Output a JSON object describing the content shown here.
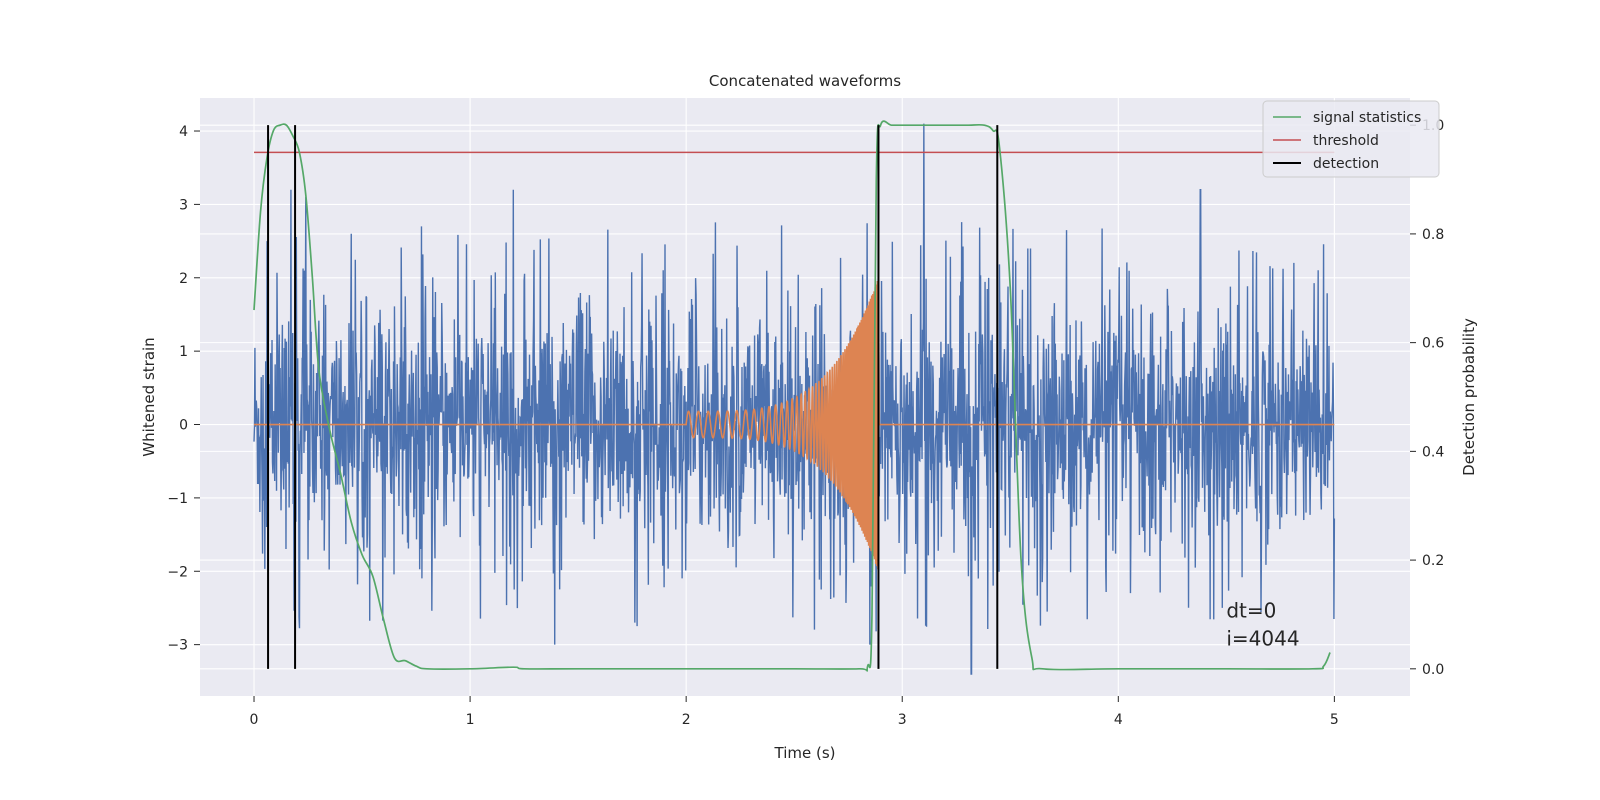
{
  "chart_data": {
    "type": "line",
    "title": "Concatenated waveforms",
    "xlabel": "Time (s)",
    "ylabel": "Whitened strain",
    "y2label": "Detection probability",
    "xlim": [
      -0.25,
      5.35
    ],
    "ylim": [
      -3.7,
      4.45
    ],
    "y2lim": [
      -0.05,
      1.05
    ],
    "xticks": [
      0,
      1,
      2,
      3,
      4,
      5
    ],
    "yticks": [
      -3,
      -2,
      -1,
      0,
      1,
      2,
      3,
      4
    ],
    "y2ticks": [
      "0.0",
      "0.2",
      "0.4",
      "0.6",
      "0.8",
      "1.0"
    ],
    "grid": true,
    "legend_position": "top-right",
    "colors": {
      "background": "#eaeaf2",
      "strain": "#4c72b0",
      "template": "#dd8452",
      "signal": "#55a868",
      "threshold": "#c44e52",
      "detection": "#000000"
    },
    "series": [
      {
        "name": "signal statistics",
        "axis": "right",
        "x": [
          0.0,
          0.03,
          0.06,
          0.09,
          0.12,
          0.15,
          0.18,
          0.21,
          0.24,
          0.27,
          0.3,
          0.35,
          0.4,
          0.45,
          0.5,
          0.55,
          0.6,
          0.65,
          0.7,
          0.75,
          0.8,
          1.0,
          1.2,
          1.25,
          1.5,
          2.0,
          2.5,
          2.8,
          2.84,
          2.86,
          2.88,
          2.9,
          2.95,
          3.0,
          3.1,
          3.2,
          3.3,
          3.38,
          3.42,
          3.45,
          3.5,
          3.55,
          3.6,
          3.65,
          4.0,
          4.5,
          4.9,
          4.95,
          4.98
        ],
        "values": [
          0.66,
          0.84,
          0.94,
          0.99,
          1.0,
          1.0,
          0.98,
          0.95,
          0.87,
          0.72,
          0.55,
          0.44,
          0.36,
          0.27,
          0.21,
          0.17,
          0.09,
          0.02,
          0.015,
          0.005,
          0.0,
          0.0,
          0.003,
          0.0,
          0.0,
          0.0,
          0.0,
          0.0,
          0.005,
          0.1,
          0.9,
          1.0,
          1.0,
          1.0,
          1.0,
          1.0,
          1.0,
          1.0,
          0.99,
          0.96,
          0.7,
          0.2,
          0.02,
          0.0,
          0.0,
          0.0,
          0.0,
          0.005,
          0.03
        ]
      },
      {
        "name": "threshold",
        "axis": "right",
        "x": [
          0.0,
          5.0
        ],
        "values": [
          0.95,
          0.95
        ]
      },
      {
        "name": "detection",
        "type": "vlines",
        "axis": "right",
        "x": [
          0.065,
          0.19,
          2.89,
          3.44
        ],
        "ymin": 0.0,
        "ymax": 1.0
      },
      {
        "type": "noise",
        "axis": "left",
        "x_range": [
          0.0,
          5.0
        ],
        "typical_range": [
          -2.3,
          2.3
        ],
        "peaks_x": [
          0.06,
          0.17,
          0.24,
          0.45,
          1.2,
          2.85,
          3.1,
          3.32,
          4.38
        ],
        "peaks_y": [
          2.5,
          3.2,
          3.1,
          2.6,
          3.2,
          -3.0,
          4.1,
          -3.4,
          3.2
        ]
      },
      {
        "type": "chirp",
        "axis": "left",
        "x_range": [
          2.0,
          2.89
        ],
        "amplitude_start": 0.18,
        "amplitude_end": 2.0,
        "flat_value": 0
      }
    ],
    "legend": [
      "signal statistics",
      "threshold",
      "detection"
    ],
    "annotations": [
      "dt=0",
      "i=4044"
    ]
  }
}
